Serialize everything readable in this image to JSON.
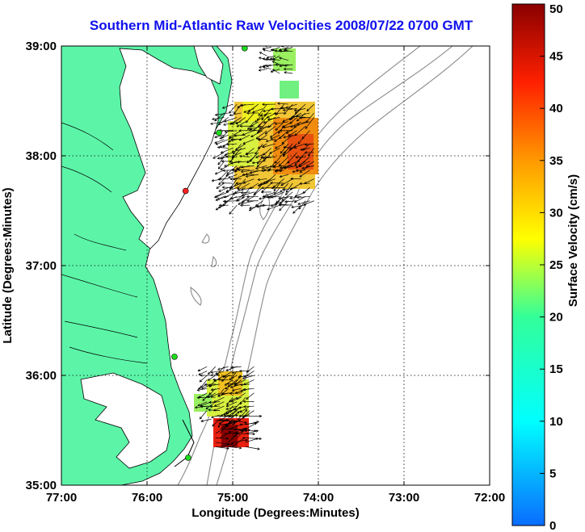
{
  "title": "Southern Mid-Atlantic Raw Velocities 2008/07/22 0700 GMT",
  "map": {
    "xlabel": "Longitude (Degrees:Minutes)",
    "ylabel": "Latitude (Degrees:Minutes)",
    "lon_range": [
      -77,
      -72
    ],
    "lat_range": [
      35,
      39
    ],
    "x_ticks": [
      {
        "value": -77,
        "label": "77:00"
      },
      {
        "value": -76,
        "label": "76:00"
      },
      {
        "value": -75,
        "label": "75:00"
      },
      {
        "value": -74,
        "label": "74:00"
      },
      {
        "value": -73,
        "label": "73:00"
      },
      {
        "value": -72,
        "label": "72:00"
      }
    ],
    "y_ticks": [
      {
        "value": 39,
        "label": "39:00"
      },
      {
        "value": 38,
        "label": "38:00"
      },
      {
        "value": 37,
        "label": "37:00"
      },
      {
        "value": 36,
        "label": "36:00"
      },
      {
        "value": 35,
        "label": "35:00"
      }
    ],
    "grid": "dotted",
    "colors": {
      "land": "#5cf5a8",
      "coastline": "#000000",
      "bathymetry": "#8a8a8a",
      "site_active": "#1fdc1f",
      "site_alert": "#ff2020"
    }
  },
  "colorbar": {
    "label": "Surface Velocity (cm/s)",
    "range": [
      0,
      50
    ],
    "ticks": [
      "0",
      "5",
      "10",
      "15",
      "20",
      "25",
      "30",
      "35",
      "40",
      "45",
      "50"
    ],
    "colormap": "jet"
  },
  "sites": [
    {
      "lon": -74.86,
      "lat": 38.98,
      "status": "active"
    },
    {
      "lon": -75.16,
      "lat": 38.21,
      "status": "active"
    },
    {
      "lon": -75.55,
      "lat": 37.68,
      "status": "alert"
    },
    {
      "lon": -75.68,
      "lat": 36.17,
      "status": "active"
    },
    {
      "lon": -75.52,
      "lat": 35.25,
      "status": "active"
    }
  ],
  "chart_data": {
    "type": "vector-map",
    "value_unit": "cm/s",
    "regions": [
      {
        "lon_range": [
          -75.1,
          -74.05
        ],
        "lat_range": [
          37.55,
          38.5
        ],
        "speed_range": [
          18,
          42
        ],
        "direction": "southwest"
      },
      {
        "lon_range": [
          -74.6,
          -74.3
        ],
        "lat_range": [
          38.75,
          39.0
        ],
        "speed_range": [
          15,
          22
        ],
        "direction": "west"
      },
      {
        "lon_range": [
          -75.3,
          -74.75
        ],
        "lat_range": [
          35.6,
          36.1
        ],
        "speed_range": [
          18,
          32
        ],
        "direction": "southwest"
      },
      {
        "lon_range": [
          -75.2,
          -74.85
        ],
        "lat_range": [
          35.35,
          35.65
        ],
        "speed_range": [
          35,
          50
        ],
        "direction": "northeast"
      }
    ]
  }
}
